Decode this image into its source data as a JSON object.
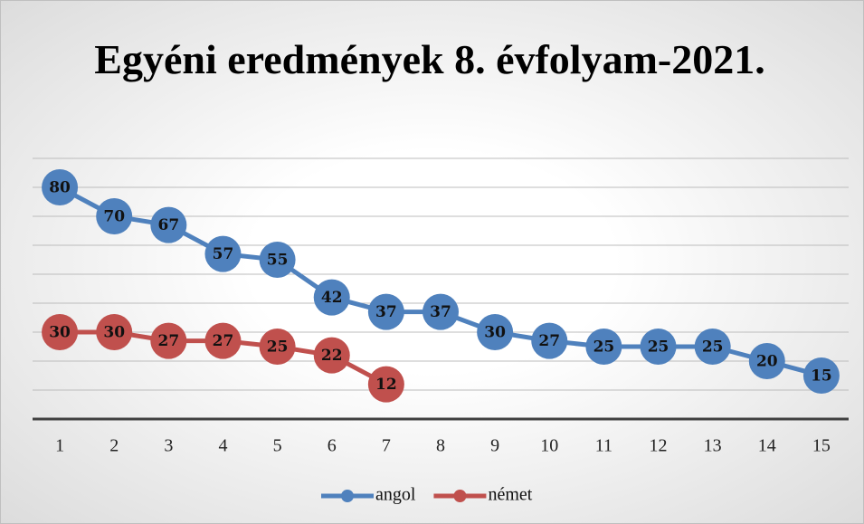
{
  "chart_data": {
    "type": "line",
    "title": "Egyéni eredmények 8. évfolyam-2021.",
    "categories": [
      "1",
      "2",
      "3",
      "4",
      "5",
      "6",
      "7",
      "8",
      "9",
      "10",
      "11",
      "12",
      "13",
      "14",
      "15"
    ],
    "series": [
      {
        "name": "angol",
        "color": "#4f81bd",
        "values": [
          80,
          70,
          67,
          57,
          55,
          42,
          37,
          37,
          30,
          27,
          25,
          25,
          25,
          20,
          15
        ]
      },
      {
        "name": "német",
        "color": "#c0504d",
        "values": [
          30,
          30,
          27,
          27,
          25,
          22,
          12,
          null,
          null,
          null,
          null,
          null,
          null,
          null,
          null
        ]
      }
    ],
    "ylim": [
      0,
      90
    ],
    "yticks": [
      0,
      10,
      20,
      30,
      40,
      50,
      60,
      70,
      80,
      90
    ],
    "grid": true,
    "legend": "bottom"
  }
}
